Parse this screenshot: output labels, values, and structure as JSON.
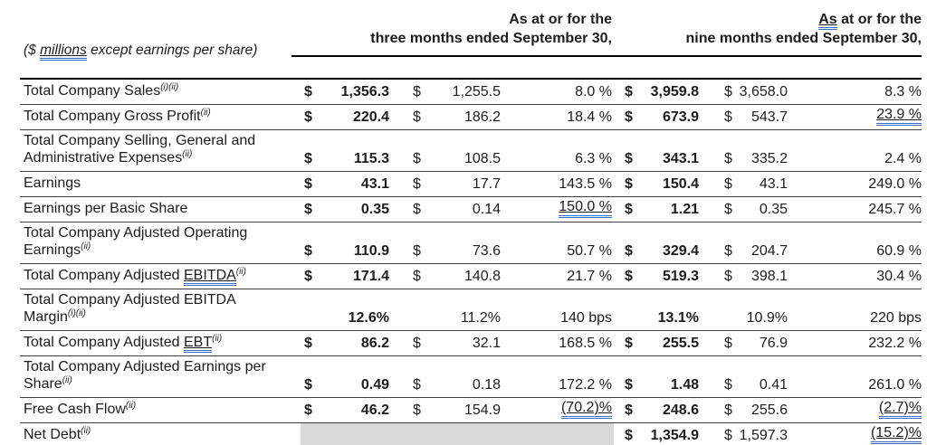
{
  "header": {
    "caption": {
      "pre": "($ ",
      "flagged": "millions",
      "post": " except earnings per share)"
    },
    "group1": {
      "line1": "As at or for the",
      "line2": "three months ended September 30,"
    },
    "group2": {
      "line1_flagged": "As",
      "line1_rest": " at or for the",
      "line2": "nine months ended September 30,"
    }
  },
  "colors": {
    "flag_underline": "#3c6bc9",
    "shading": "#d9d9d9",
    "rule": "#000000"
  },
  "table": {
    "rows": [
      {
        "label": "Total Company Sales",
        "label_flagged": "",
        "sup": "(i)(ii)",
        "d1": "$",
        "v1": "1,356.3",
        "d2": "$",
        "v2": "1,255.5",
        "p1": "8.0 %",
        "p1_flag": false,
        "d3": "$",
        "v3": "3,959.8",
        "d4": "$",
        "v4": "3,658.0",
        "p2": "8.3 %",
        "p2_flag": false,
        "gray_left": false
      },
      {
        "label": "Total Company Gross Profit",
        "label_flagged": "",
        "sup": "(ii)",
        "d1": "$",
        "v1": "220.4",
        "d2": "$",
        "v2": "186.2",
        "p1": "18.4 %",
        "p1_flag": false,
        "d3": "$",
        "v3": "673.9",
        "d4": "$",
        "v4": "543.7",
        "p2": "23.9 %",
        "p2_flag": true,
        "gray_left": false
      },
      {
        "label": "Total Company Selling, General and\nAdministrative Expenses",
        "label_flagged": "",
        "sup": "(ii)",
        "d1": "$",
        "v1": "115.3",
        "d2": "$",
        "v2": "108.5",
        "p1": "6.3 %",
        "p1_flag": false,
        "d3": "$",
        "v3": "343.1",
        "d4": "$",
        "v4": "335.2",
        "p2": "2.4 %",
        "p2_flag": false,
        "gray_left": false
      },
      {
        "label": "Earnings",
        "label_flagged": "",
        "sup": "",
        "d1": "$",
        "v1": "43.1",
        "d2": "$",
        "v2": "17.7",
        "p1": "143.5 %",
        "p1_flag": false,
        "d3": "$",
        "v3": "150.4",
        "d4": "$",
        "v4": "43.1",
        "p2": "249.0 %",
        "p2_flag": false,
        "gray_left": false
      },
      {
        "label": "Earnings per Basic Share",
        "label_flagged": "",
        "sup": "",
        "d1": "$",
        "v1": "0.35",
        "d2": "$",
        "v2": "0.14",
        "p1": "150.0 %",
        "p1_flag": true,
        "d3": "$",
        "v3": "1.21",
        "d4": "$",
        "v4": "0.35",
        "p2": "245.7 %",
        "p2_flag": false,
        "gray_left": false
      },
      {
        "label": "Total Company Adjusted Operating\nEarnings",
        "label_flagged": "",
        "sup": "(ii)",
        "d1": "$",
        "v1": "110.9",
        "d2": "$",
        "v2": "73.6",
        "p1": "50.7 %",
        "p1_flag": false,
        "d3": "$",
        "v3": "329.4",
        "d4": "$",
        "v4": "204.7",
        "p2": "60.9 %",
        "p2_flag": false,
        "gray_left": false
      },
      {
        "label": "Total Company Adjusted ",
        "label_flagged": "EBITDA",
        "sup": "(ii)",
        "d1": "$",
        "v1": "171.4",
        "d2": "$",
        "v2": "140.8",
        "p1": "21.7 %",
        "p1_flag": false,
        "d3": "$",
        "v3": "519.3",
        "d4": "$",
        "v4": "398.1",
        "p2": "30.4 %",
        "p2_flag": false,
        "gray_left": false
      },
      {
        "label": "Total Company Adjusted EBITDA\nMargin",
        "label_flagged": "",
        "sup": "(i)(ii)",
        "d1": "",
        "v1": "12.6%",
        "d2": "",
        "v2": "11.2%",
        "p1": "140 bps",
        "p1_flag": false,
        "d3": "",
        "v3": "13.1%",
        "d4": "",
        "v4": "10.9%",
        "p2": "220 bps",
        "p2_flag": false,
        "gray_left": false
      },
      {
        "label": "Total Company Adjusted ",
        "label_flagged": "EBT",
        "sup": "(ii)",
        "d1": "$",
        "v1": "86.2",
        "d2": "$",
        "v2": "32.1",
        "p1": "168.5 %",
        "p1_flag": false,
        "d3": "$",
        "v3": "255.5",
        "d4": "$",
        "v4": "76.9",
        "p2": "232.2 %",
        "p2_flag": false,
        "gray_left": false
      },
      {
        "label": "Total Company Adjusted Earnings per\nShare",
        "label_flagged": "",
        "sup": "(ii)",
        "d1": "$",
        "v1": "0.49",
        "d2": "$",
        "v2": "0.18",
        "p1": "172.2 %",
        "p1_flag": false,
        "d3": "$",
        "v3": "1.48",
        "d4": "$",
        "v4": "0.41",
        "p2": "261.0 %",
        "p2_flag": false,
        "gray_left": false
      },
      {
        "label": "Free Cash Flow",
        "label_flagged": "",
        "sup": "(ii)",
        "d1": "$",
        "v1": "46.2",
        "d2": "$",
        "v2": "154.9",
        "p1": "(70.2)%",
        "p1_flag": true,
        "d3": "$",
        "v3": "248.6",
        "d4": "$",
        "v4": "255.6",
        "p2": "(2.7)%",
        "p2_flag": true,
        "gray_left": false
      },
      {
        "label": "Net Debt",
        "label_flagged": "",
        "sup": "(ii)",
        "d1": "",
        "v1": "",
        "d2": "",
        "v2": "",
        "p1": "",
        "p1_flag": false,
        "d3": "$",
        "v3": "1,354.9",
        "d4": "$",
        "v4": "1,597.3",
        "p2": "(15.2)%",
        "p2_flag": true,
        "gray_left": true
      }
    ]
  }
}
